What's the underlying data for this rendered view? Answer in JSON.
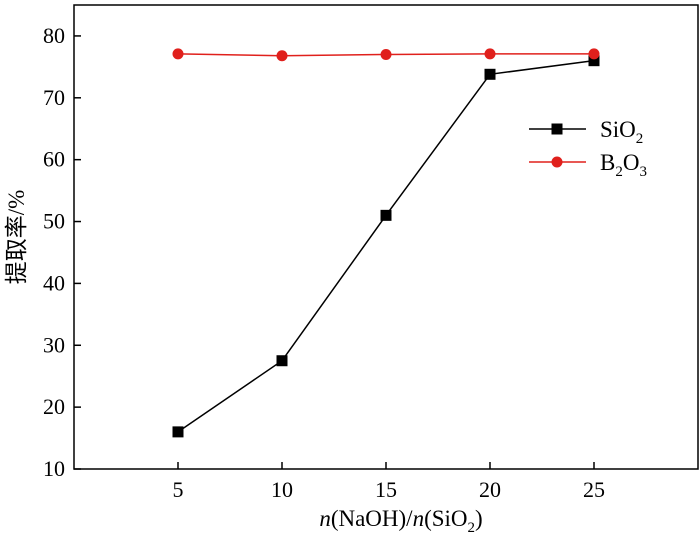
{
  "chart_data": {
    "type": "line",
    "x": [
      5,
      10,
      15,
      20,
      25
    ],
    "series": [
      {
        "name": "SiO2",
        "name_display": [
          "SiO",
          "2",
          ""
        ],
        "marker": "square",
        "color": "#000000",
        "values": [
          16.0,
          27.5,
          51.0,
          73.8,
          76.0
        ]
      },
      {
        "name": "B2O3",
        "name_display": [
          "B",
          "2",
          "O",
          "3"
        ],
        "marker": "circle",
        "color": "#e0201c",
        "values": [
          77.1,
          76.8,
          77.0,
          77.1,
          77.1
        ]
      }
    ],
    "xlim": [
      0,
      30
    ],
    "ylim": [
      10,
      85
    ],
    "xticks": [
      5,
      10,
      15,
      20,
      25
    ],
    "yticks": [
      10,
      20,
      30,
      40,
      50,
      60,
      70,
      80
    ],
    "xlabel": "n(NaOH)/n(SiO2)",
    "xlabel_parts": {
      "n1": "n",
      "mid": "(NaOH)/",
      "n2": "n",
      "pre_sub": "(SiO",
      "sub": "2",
      "close": ")"
    },
    "ylabel": "提取率/%",
    "title": "",
    "grid": false,
    "legend_position": "right-upper"
  }
}
